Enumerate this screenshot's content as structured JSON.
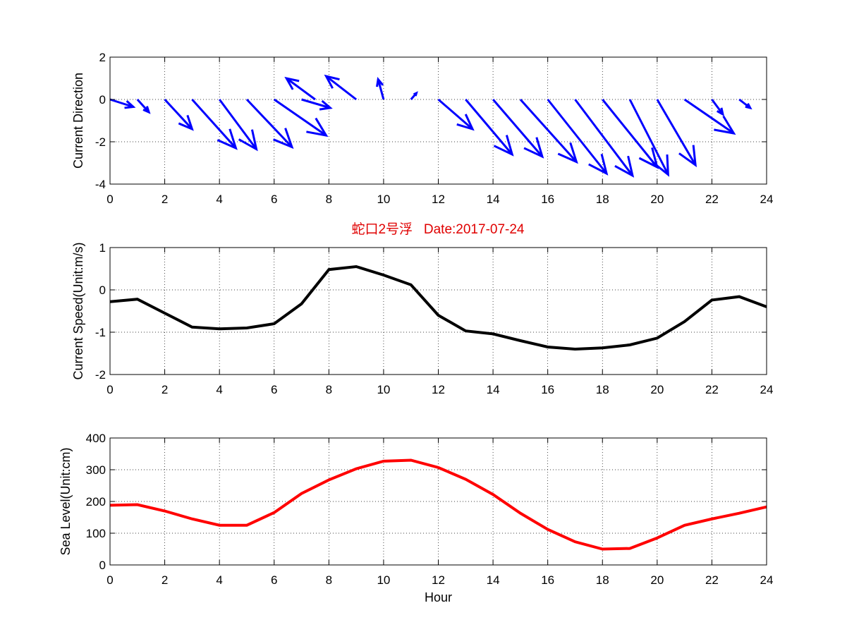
{
  "figure": {
    "title": "蛇口2号浮   Date:2017-07-24",
    "title_color": "#e00000"
  },
  "chart_data": [
    {
      "type": "quiver",
      "ylabel": "Current Direction",
      "xlabel": "",
      "xlim": [
        0,
        24
      ],
      "ylim": [
        -4,
        2
      ],
      "xticks": [
        "0",
        "2",
        "4",
        "6",
        "8",
        "10",
        "12",
        "14",
        "16",
        "18",
        "20",
        "22",
        "24"
      ],
      "yticks": [
        "2",
        "0",
        "-2",
        "-4"
      ],
      "grid": true,
      "color": "#0000ff",
      "arrows": [
        {
          "x": 0,
          "u": 0.85,
          "v": -0.35
        },
        {
          "x": 1,
          "u": 0.42,
          "v": -0.6
        },
        {
          "x": 2,
          "u": 1.0,
          "v": -1.4
        },
        {
          "x": 3,
          "u": 1.6,
          "v": -2.3
        },
        {
          "x": 4,
          "u": 1.35,
          "v": -2.35
        },
        {
          "x": 5,
          "u": 1.65,
          "v": -2.25
        },
        {
          "x": 6,
          "u": 1.9,
          "v": -1.7
        },
        {
          "x": 7,
          "u": 1.05,
          "v": -0.4
        },
        {
          "x": 7.5,
          "u": -1.05,
          "v": 1.0
        },
        {
          "x": 9,
          "u": -1.1,
          "v": 1.1
        },
        {
          "x": 10,
          "u": -0.2,
          "v": 0.95
        },
        {
          "x": 11,
          "u": 0.2,
          "v": 0.3
        },
        {
          "x": 12,
          "u": 1.25,
          "v": -1.4
        },
        {
          "x": 13,
          "u": 1.7,
          "v": -2.6
        },
        {
          "x": 14,
          "u": 1.8,
          "v": -2.7
        },
        {
          "x": 15,
          "u": 2.05,
          "v": -2.95
        },
        {
          "x": 16,
          "u": 2.15,
          "v": -3.5
        },
        {
          "x": 17,
          "u": 2.1,
          "v": -3.6
        },
        {
          "x": 18,
          "u": 2.0,
          "v": -3.2
        },
        {
          "x": 19,
          "u": 1.4,
          "v": -3.55
        },
        {
          "x": 20,
          "u": 1.4,
          "v": -3.1
        },
        {
          "x": 21,
          "u": 1.8,
          "v": -1.6
        },
        {
          "x": 22,
          "u": 0.4,
          "v": -0.7
        },
        {
          "x": 23,
          "u": 0.4,
          "v": -0.4
        }
      ]
    },
    {
      "type": "line",
      "ylabel": "Current Speed(Unit:m/s)",
      "xlabel": "",
      "xlim": [
        0,
        24
      ],
      "ylim": [
        -2,
        1
      ],
      "xticks": [
        "0",
        "2",
        "4",
        "6",
        "8",
        "10",
        "12",
        "14",
        "16",
        "18",
        "20",
        "22",
        "24"
      ],
      "yticks": [
        "1",
        "0",
        "-1",
        "-2"
      ],
      "grid": true,
      "series": [
        {
          "color": "#000000",
          "x": [
            0,
            1,
            2,
            3,
            4,
            5,
            6,
            7,
            8,
            9,
            10,
            11,
            12,
            13,
            14,
            15,
            16,
            17,
            18,
            19,
            20,
            21,
            22,
            23,
            24
          ],
          "y": [
            -0.28,
            -0.22,
            -0.55,
            -0.88,
            -0.92,
            -0.9,
            -0.8,
            -0.33,
            0.48,
            0.55,
            0.35,
            0.12,
            -0.6,
            -0.97,
            -1.04,
            -1.2,
            -1.35,
            -1.4,
            -1.37,
            -1.3,
            -1.14,
            -0.75,
            -0.24,
            -0.16,
            -0.4
          ]
        }
      ]
    },
    {
      "type": "line",
      "ylabel": "Sea Level(Unit:cm)",
      "xlabel": "Hour",
      "xlim": [
        0,
        24
      ],
      "ylim": [
        0,
        400
      ],
      "xticks": [
        "0",
        "2",
        "4",
        "6",
        "8",
        "10",
        "12",
        "14",
        "16",
        "18",
        "20",
        "22",
        "24"
      ],
      "yticks": [
        "400",
        "300",
        "200",
        "100",
        "0"
      ],
      "grid": true,
      "series": [
        {
          "color": "#ff0000",
          "x": [
            0,
            1,
            2,
            3,
            4,
            5,
            6,
            7,
            8,
            9,
            10,
            11,
            12,
            13,
            14,
            15,
            16,
            17,
            18,
            19,
            20,
            21,
            22,
            23,
            24
          ],
          "y": [
            188,
            190,
            170,
            145,
            125,
            125,
            165,
            225,
            268,
            303,
            327,
            330,
            307,
            270,
            222,
            163,
            112,
            73,
            50,
            52,
            85,
            125,
            145,
            163,
            183
          ]
        }
      ]
    }
  ]
}
